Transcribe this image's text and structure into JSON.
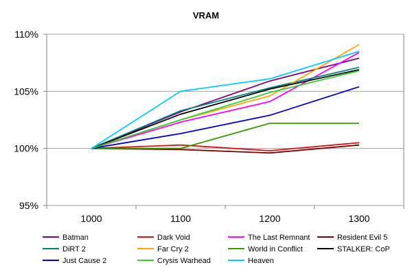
{
  "chart_data": {
    "type": "line",
    "title": "VRAM",
    "xlabel": "",
    "ylabel": "",
    "categories": [
      "1000",
      "1100",
      "1200",
      "1300"
    ],
    "ylim": [
      95,
      110
    ],
    "y_ticks": [
      "95%",
      "100%",
      "105%",
      "110%"
    ],
    "y_tick_values": [
      95,
      100,
      105,
      110
    ],
    "grid": "horizontal",
    "legend_position": "bottom",
    "series": [
      {
        "name": "Batman",
        "color": "#800080",
        "values": [
          100,
          103.2,
          105.9,
          107.9
        ]
      },
      {
        "name": "Dark Void",
        "color": "#e01010",
        "values": [
          100,
          100.3,
          99.8,
          100.5
        ]
      },
      {
        "name": "The Last Remnant",
        "color": "#ff00ff",
        "values": [
          100,
          102.3,
          104.1,
          108.4
        ]
      },
      {
        "name": "Resident Evil 5",
        "color": "#800000",
        "values": [
          100,
          99.9,
          99.6,
          100.3
        ]
      },
      {
        "name": "DiRT 2",
        "color": "#008080",
        "values": [
          100,
          103.3,
          105.3,
          107.1
        ]
      },
      {
        "name": "Far Cry 2",
        "color": "#ffa500",
        "values": [
          100,
          102.5,
          104.6,
          109.1
        ]
      },
      {
        "name": "World in Conflict",
        "color": "#339900",
        "values": [
          100,
          100.0,
          102.2,
          102.2
        ]
      },
      {
        "name": "STALKER: CoP",
        "color": "#000000",
        "values": [
          100,
          103.0,
          105.2,
          106.9
        ]
      },
      {
        "name": "Just Cause 2",
        "color": "#0000cc",
        "values": [
          100,
          101.3,
          102.9,
          105.4
        ]
      },
      {
        "name": "Crysis Warhead",
        "color": "#33cc33",
        "values": [
          100,
          102.5,
          104.9,
          106.8
        ]
      },
      {
        "name": "Heaven",
        "color": "#00ccff",
        "values": [
          100,
          105.0,
          106.1,
          108.5
        ]
      }
    ]
  }
}
